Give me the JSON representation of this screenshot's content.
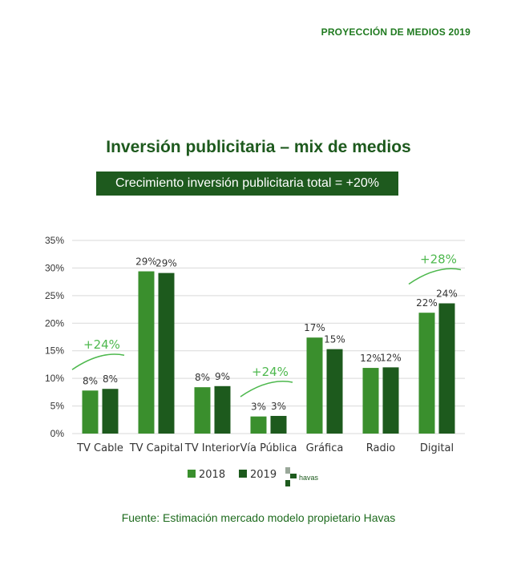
{
  "header": "PROYECCIÓN DE MEDIOS 2019",
  "title": "Inversión publicitaria – mix de medios",
  "banner": "Crecimiento inversión publicitaria total = +20%",
  "source": "Fuente: Estimación mercado modelo propietario Havas",
  "colors": {
    "s2018": "#3a8f2d",
    "s2019": "#1d5a1d",
    "accent": "#4db84d",
    "text": "#333333",
    "grid": "#d9d9d9"
  },
  "chart_data": {
    "type": "bar",
    "categories": [
      "TV Cable",
      "TV Capital",
      "TV Interior",
      "Vía Pública",
      "Gráfica",
      "Radio",
      "Digital"
    ],
    "series": [
      {
        "name": "2018",
        "values": [
          7.8,
          29.4,
          8.4,
          3.1,
          17.4,
          11.9,
          21.9
        ],
        "labels": [
          "8%",
          "29%",
          "8%",
          "3%",
          "17%",
          "12%",
          "22%"
        ]
      },
      {
        "name": "2019",
        "values": [
          8.1,
          29.1,
          8.6,
          3.2,
          15.3,
          12.0,
          23.6
        ],
        "labels": [
          "8%",
          "29%",
          "9%",
          "3%",
          "15%",
          "12%",
          "24%"
        ]
      }
    ],
    "ylim": [
      0,
      35
    ],
    "yticks": [
      "0%",
      "5%",
      "10%",
      "15%",
      "20%",
      "25%",
      "30%",
      "35%"
    ],
    "grid": true,
    "legend_position": "bottom",
    "annotations": [
      {
        "category": "TV Cable",
        "text": "+24%"
      },
      {
        "category": "Vía Pública",
        "text": "+24%"
      },
      {
        "category": "Digital",
        "text": "+28%"
      }
    ]
  },
  "logo_text": "havas"
}
